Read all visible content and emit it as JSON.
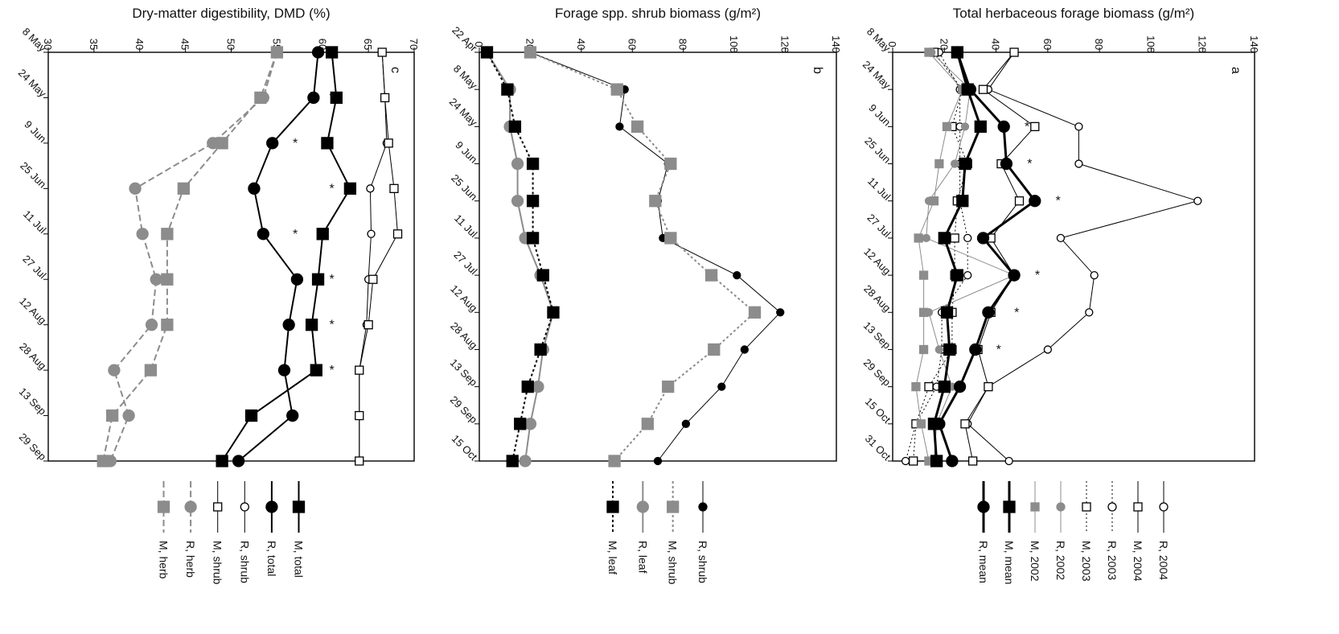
{
  "colors": {
    "black": "#000000",
    "gray": "#8c8c8c",
    "white": "#ffffff"
  },
  "chart_data": [
    {
      "panel": "c",
      "type": "line",
      "title": "Dry-matter digestibility, DMD (%)",
      "ylim": [
        30,
        70
      ],
      "yticks": [
        30,
        35,
        40,
        45,
        50,
        55,
        60,
        65,
        70
      ],
      "categories": [
        "8 May",
        "24 May",
        "9 Jun",
        "25 Jun",
        "11 Jul",
        "27 Jul",
        "12 Aug",
        "28 Aug",
        "13 Sep",
        "29 Sep"
      ],
      "series": [
        {
          "name": "M, total",
          "color": "#000000",
          "marker": "square",
          "fill": "#000000",
          "dash": "",
          "width": 2,
          "values": [
            61,
            61.5,
            60.5,
            63,
            60,
            59.5,
            58.8,
            59.3,
            52.2,
            49
          ]
        },
        {
          "name": "R, total",
          "color": "#000000",
          "marker": "circle",
          "fill": "#000000",
          "dash": "",
          "width": 2,
          "values": [
            59.5,
            59,
            54.5,
            52.5,
            53.5,
            57.2,
            56.3,
            55.8,
            56.7,
            50.8
          ]
        },
        {
          "name": "R, shrub",
          "color": "#000000",
          "marker": "circle",
          "fill": "#ffffff",
          "dash": "",
          "width": 1,
          "values": [
            66.5,
            66.8,
            67,
            65.2,
            65.3,
            65,
            64.8,
            64,
            64,
            64
          ]
        },
        {
          "name": "M, shrub",
          "color": "#000000",
          "marker": "square",
          "fill": "#ffffff",
          "dash": "",
          "width": 1,
          "values": [
            66.5,
            66.8,
            67.2,
            67.8,
            68.2,
            65.5,
            65,
            64,
            64,
            64
          ]
        },
        {
          "name": "R, herb",
          "color": "#8c8c8c",
          "marker": "circle",
          "fill": "#8c8c8c",
          "dash": "8 4",
          "width": 2,
          "values": [
            55,
            53.5,
            48,
            39.5,
            40.3,
            41.8,
            41.3,
            37.2,
            38.8,
            36.8
          ]
        },
        {
          "name": "M, herb",
          "color": "#8c8c8c",
          "marker": "square",
          "fill": "#8c8c8c",
          "dash": "8 4",
          "width": 2,
          "values": [
            55,
            53.2,
            49,
            44.8,
            43,
            43,
            43,
            41.2,
            37,
            36
          ]
        }
      ],
      "stars": [
        {
          "category": "24 May",
          "value": 61
        },
        {
          "category": "9 Jun",
          "value": 57
        },
        {
          "category": "25 Jun",
          "value": 61
        },
        {
          "category": "11 Jul",
          "value": 57
        },
        {
          "category": "27 Jul",
          "value": 61
        },
        {
          "category": "12 Aug",
          "value": 61
        },
        {
          "category": "28 Aug",
          "value": 61
        }
      ]
    },
    {
      "panel": "b",
      "type": "line",
      "title": "Forage spp. shrub biomass (g/m²)",
      "ylim": [
        0,
        140
      ],
      "yticks": [
        0,
        20,
        40,
        60,
        80,
        100,
        120,
        140
      ],
      "categories": [
        "22 Apr",
        "8 May",
        "24 May",
        "9 Jun",
        "25 Jun",
        "11 Jul",
        "27 Jul",
        "12 Aug",
        "28 Aug",
        "13 Sep",
        "29 Sep",
        "15 Oct"
      ],
      "series": [
        {
          "name": "R, shrub",
          "color": "#000000",
          "marker": "circle",
          "fill": "#000000",
          "dash": "",
          "width": 1,
          "values": [
            20,
            57,
            55,
            74,
            70,
            72,
            101,
            118,
            104,
            95,
            81,
            70
          ]
        },
        {
          "name": "M, shrub",
          "color": "#8c8c8c",
          "marker": "square",
          "fill": "#8c8c8c",
          "dash": "3 3",
          "width": 2,
          "values": [
            20,
            54,
            62,
            75,
            69,
            75,
            91,
            108,
            92,
            74,
            66,
            53
          ]
        },
        {
          "name": "R, leaf",
          "color": "#8c8c8c",
          "marker": "circle",
          "fill": "#8c8c8c",
          "dash": "",
          "width": 2,
          "values": [
            3,
            12,
            12,
            15,
            15,
            18,
            24,
            29,
            25,
            23,
            20,
            18
          ]
        },
        {
          "name": "M, leaf",
          "color": "#000000",
          "marker": "square",
          "fill": "#000000",
          "dash": "3 3",
          "width": 2,
          "values": [
            3,
            11,
            14,
            21,
            21,
            21,
            25,
            29,
            24,
            19,
            16,
            13
          ]
        }
      ],
      "stars": []
    },
    {
      "panel": "a",
      "type": "line",
      "title": "Total herbaceous forage biomass (g/m²)",
      "ylim": [
        0,
        140
      ],
      "yticks": [
        0,
        20,
        40,
        60,
        80,
        100,
        120,
        140
      ],
      "categories": [
        "8 May",
        "24 May",
        "9 Jun",
        "25 Jun",
        "11 Jul",
        "27 Jul",
        "12 Aug",
        "28 Aug",
        "13 Sep",
        "29 Sep",
        "15 Oct",
        "31 Oct"
      ],
      "series": [
        {
          "name": "R, 2004",
          "color": "#000000",
          "marker": "circle",
          "fill": "#ffffff",
          "dash": "",
          "width": 1,
          "values": [
            47,
            37,
            72,
            72,
            118,
            65,
            78,
            76,
            60,
            37,
            29,
            45
          ]
        },
        {
          "name": "M, 2004",
          "color": "#000000",
          "marker": "square",
          "fill": "#ffffff",
          "dash": "",
          "width": 1,
          "values": [
            47,
            35,
            55,
            42,
            49,
            38,
            47,
            38,
            33,
            37,
            28,
            31
          ]
        },
        {
          "name": "R, 2003",
          "color": "#000000",
          "marker": "circle",
          "fill": "#ffffff",
          "dash": "2 3",
          "width": 1,
          "values": [
            18,
            26,
            26,
            26,
            26,
            29,
            29,
            19,
            19,
            17,
            9,
            5
          ]
        },
        {
          "name": "M, 2003",
          "color": "#000000",
          "marker": "square",
          "fill": "#ffffff",
          "dash": "2 3",
          "width": 1,
          "values": [
            16,
            27,
            23,
            29,
            25,
            24,
            24,
            23,
            23,
            14,
            9,
            8
          ]
        },
        {
          "name": "R, 2002",
          "color": "#8c8c8c",
          "marker": "circle",
          "fill": "#8c8c8c",
          "dash": "",
          "width": 1,
          "values": [
            15,
            30,
            28,
            24,
            14,
            13,
            47,
            14,
            18,
            23,
            17,
            16
          ]
        },
        {
          "name": "M, 2002",
          "color": "#8c8c8c",
          "marker": "square",
          "fill": "#8c8c8c",
          "dash": "",
          "width": 1,
          "values": [
            14,
            27,
            21,
            18,
            16,
            10,
            12,
            12,
            12,
            9,
            11,
            14
          ]
        },
        {
          "name": "M, mean",
          "color": "#000000",
          "marker": "square",
          "fill": "#000000",
          "dash": "",
          "width": 3,
          "values": [
            25,
            29,
            34,
            28,
            27,
            20,
            25,
            21,
            22,
            20,
            16,
            17
          ]
        },
        {
          "name": "R, mean",
          "color": "#000000",
          "marker": "circle",
          "fill": "#000000",
          "dash": "",
          "width": 3,
          "values": [
            25,
            30,
            43,
            44,
            55,
            35,
            47,
            37,
            32,
            26,
            18,
            23
          ]
        }
      ],
      "stars": [
        {
          "category": "9 Jun",
          "value": 52
        },
        {
          "category": "25 Jun",
          "value": 53
        },
        {
          "category": "11 Jul",
          "value": 64
        },
        {
          "category": "12 Aug",
          "value": 56
        },
        {
          "category": "28 Aug",
          "value": 48
        },
        {
          "category": "13 Sep",
          "value": 41
        }
      ]
    }
  ]
}
